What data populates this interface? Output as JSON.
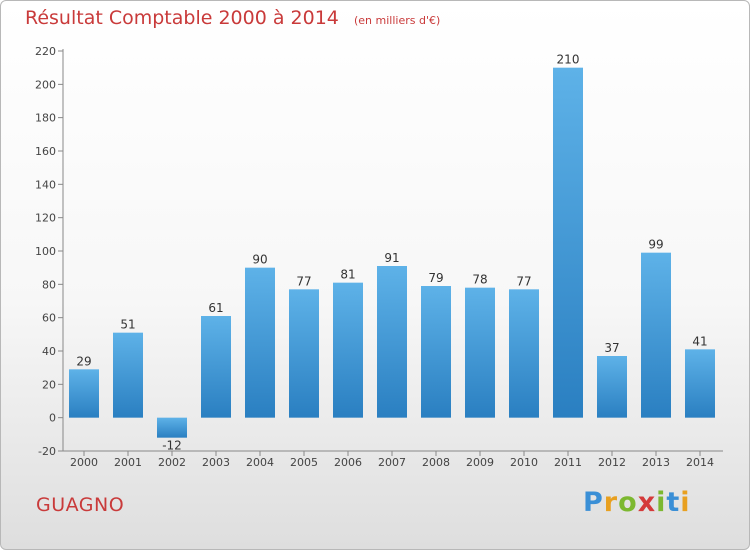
{
  "header": {
    "title": "Résultat Comptable 2000 à 2014",
    "subtitle": "(en milliers d'€)"
  },
  "footer": {
    "commune": "GUAGNO",
    "logo": "Proxiti"
  },
  "colors": {
    "title": "#c93a3a",
    "bar_top": "#5eb2e8",
    "bar_bottom": "#2a7fc1",
    "logo_letters": [
      "#3a8fd6",
      "#e8a020",
      "#7cb830",
      "#d43a3a",
      "#7cb830",
      "#3a8fd6",
      "#e8a020"
    ]
  },
  "chart_data": {
    "type": "bar",
    "categories": [
      "2000",
      "2001",
      "2002",
      "2003",
      "2004",
      "2005",
      "2006",
      "2007",
      "2008",
      "2009",
      "2010",
      "2011",
      "2012",
      "2013",
      "2014"
    ],
    "values": [
      29,
      51,
      -12,
      61,
      90,
      77,
      81,
      91,
      79,
      78,
      77,
      210,
      37,
      99,
      41
    ],
    "title": "Résultat Comptable 2000 à 2014",
    "ylim": [
      -20,
      220
    ],
    "yticks": [
      -20,
      0,
      20,
      40,
      60,
      80,
      100,
      120,
      140,
      160,
      180,
      200,
      220
    ],
    "grid": false,
    "legend": "none"
  }
}
